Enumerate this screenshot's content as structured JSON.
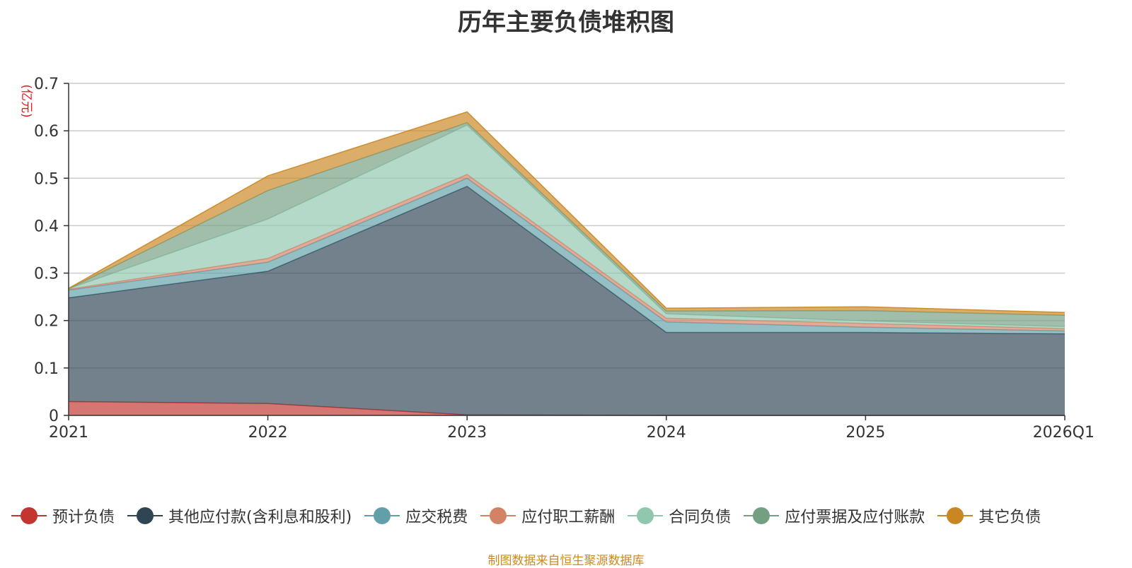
{
  "chart_data": {
    "type": "area",
    "stacked": true,
    "title": "历年主要负债堆积图",
    "ylabel": "(亿元)",
    "xlabel": "",
    "ylim": [
      0,
      0.7
    ],
    "yticks": [
      0,
      0.1,
      0.2,
      0.3,
      0.4,
      0.5,
      0.6,
      0.7
    ],
    "ytick_labels": [
      "0",
      "0.1",
      "0.2",
      "0.3",
      "0.4",
      "0.5",
      "0.6",
      "0.7"
    ],
    "categories": [
      "2021",
      "2022",
      "2023",
      "2024",
      "2025",
      "2026Q1"
    ],
    "grid": true,
    "legend_position": "bottom",
    "series": [
      {
        "name": "预计负债",
        "color": "#c23531",
        "values": [
          0.029,
          0.025,
          0.001,
          0,
          0,
          0
        ]
      },
      {
        "name": "其他应付款(含利息和股利)",
        "color": "#2f4554",
        "values": [
          0.219,
          0.279,
          0.482,
          0.175,
          0.175,
          0.172
        ]
      },
      {
        "name": "应交税费",
        "color": "#61a0a8",
        "values": [
          0.016,
          0.019,
          0.017,
          0.022,
          0.011,
          0.006
        ]
      },
      {
        "name": "应付职工薪酬",
        "color": "#d48265",
        "values": [
          0.002,
          0.008,
          0.008,
          0.008,
          0.008,
          0.005
        ]
      },
      {
        "name": "合同负债",
        "color": "#91c7ae",
        "values": [
          0.001,
          0.083,
          0.104,
          0.009,
          0.005,
          0.004
        ]
      },
      {
        "name": "应付票据及应付账款",
        "color": "#749f83",
        "values": [
          0.0,
          0.06,
          0.005,
          0.006,
          0.022,
          0.024
        ]
      },
      {
        "name": "其它负债",
        "color": "#ca8622",
        "values": [
          0.001,
          0.031,
          0.023,
          0.006,
          0.008,
          0.006
        ]
      }
    ]
  },
  "source_note": "制图数据来自恒生聚源数据库"
}
